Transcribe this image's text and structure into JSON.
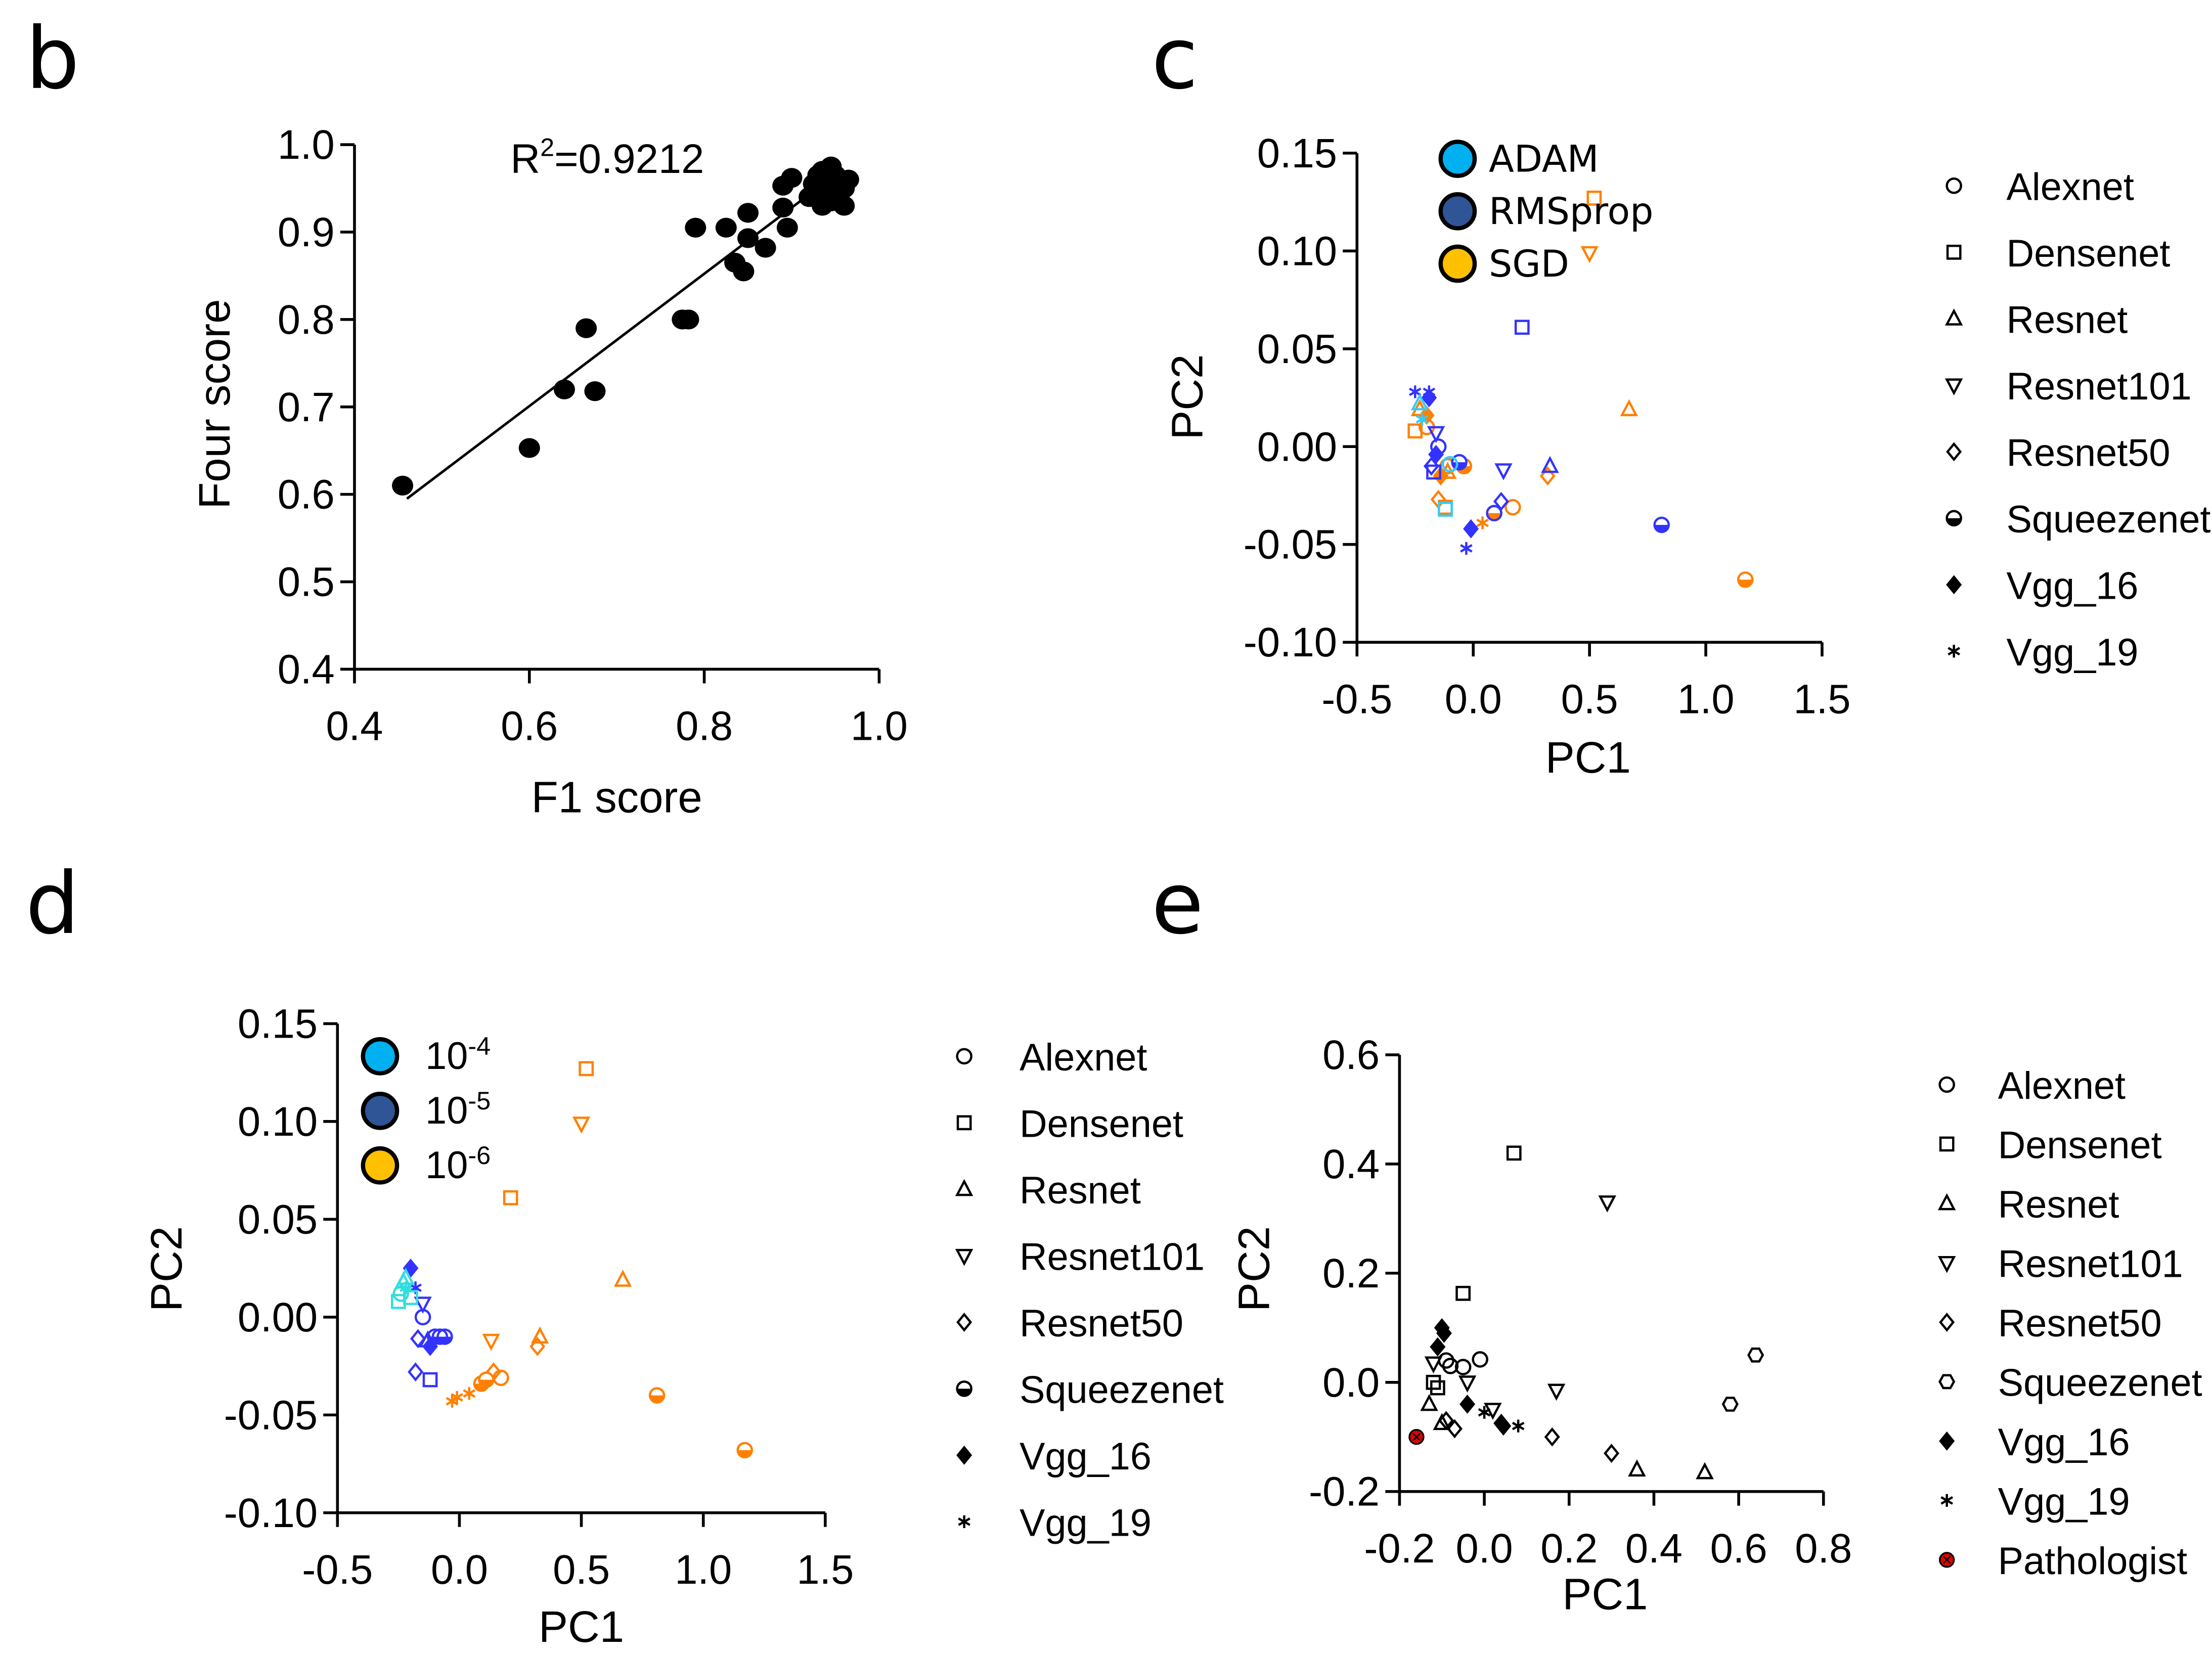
{
  "chart_data": [
    {
      "panel": "b",
      "type": "scatter",
      "xlabel": "F1 score",
      "ylabel": "Four score",
      "xlim": [
        0.4,
        1.0
      ],
      "ylim": [
        0.4,
        1.0
      ],
      "xticks": [
        0.4,
        0.6,
        0.8,
        1.0
      ],
      "xtick_labels": [
        "0.4",
        "0.6",
        "0.8",
        "1.0"
      ],
      "yticks": [
        0.4,
        0.5,
        0.6,
        0.7,
        0.8,
        0.9,
        1.0
      ],
      "ytick_labels": [
        "0.4",
        "0.5",
        "0.6",
        "0.7",
        "0.8",
        "0.9",
        "1.0"
      ],
      "annotation": {
        "base": "R",
        "sup": "2",
        "rest": "=0.9212"
      },
      "regression_line": [
        [
          0.46,
          0.595
        ],
        [
          0.945,
          0.962
        ]
      ],
      "points": [
        [
          0.455,
          0.61
        ],
        [
          0.6,
          0.653
        ],
        [
          0.64,
          0.72
        ],
        [
          0.665,
          0.79
        ],
        [
          0.675,
          0.718
        ],
        [
          0.775,
          0.8
        ],
        [
          0.782,
          0.8
        ],
        [
          0.79,
          0.905
        ],
        [
          0.825,
          0.905
        ],
        [
          0.835,
          0.865
        ],
        [
          0.845,
          0.855
        ],
        [
          0.85,
          0.922
        ],
        [
          0.85,
          0.893
        ],
        [
          0.87,
          0.882
        ],
        [
          0.89,
          0.928
        ],
        [
          0.895,
          0.905
        ],
        [
          0.89,
          0.953
        ],
        [
          0.9,
          0.962
        ],
        [
          0.92,
          0.94
        ],
        [
          0.93,
          0.95
        ],
        [
          0.93,
          0.965
        ],
        [
          0.935,
          0.93
        ],
        [
          0.94,
          0.96
        ],
        [
          0.945,
          0.975
        ],
        [
          0.95,
          0.94
        ],
        [
          0.955,
          0.955
        ],
        [
          0.96,
          0.93
        ],
        [
          0.96,
          0.95
        ],
        [
          0.965,
          0.96
        ],
        [
          0.94,
          0.945
        ],
        [
          0.95,
          0.965
        ],
        [
          0.925,
          0.955
        ],
        [
          0.945,
          0.935
        ],
        [
          0.935,
          0.97
        ]
      ]
    },
    {
      "panel": "c",
      "type": "scatter",
      "xlabel": "PC1",
      "ylabel": "PC2",
      "xlim": [
        -0.5,
        1.5
      ],
      "ylim": [
        -0.1,
        0.15
      ],
      "xticks": [
        -0.5,
        0.0,
        0.5,
        1.0,
        1.5
      ],
      "xtick_labels": [
        "-0.5",
        "0.0",
        "0.5",
        "1.0",
        "1.5"
      ],
      "yticks": [
        -0.1,
        -0.05,
        0.0,
        0.05,
        0.1,
        0.15
      ],
      "ytick_labels": [
        "-0.10",
        "-0.05",
        "0.00",
        "0.05",
        "0.10",
        "0.15"
      ],
      "color_legend": [
        {
          "label": "ADAM",
          "color": "#00b0f0"
        },
        {
          "label": "RMSprop",
          "color": "#2f5597"
        },
        {
          "label": "SGD",
          "color": "#ffc000"
        }
      ],
      "marker_colors": {
        "ADAM": "#33ccff",
        "RMSprop": "#3333ff",
        "SGD": "#ff8000"
      },
      "shape_legend": [
        "Alexnet",
        "Densenet",
        "Resnet",
        "Resnet101",
        "Resnet50",
        "Squeezenet",
        "Vgg_16",
        "Vgg_19"
      ],
      "points": [
        [
          0.52,
          0.127,
          "Densenet",
          "SGD"
        ],
        [
          0.5,
          0.099,
          "Resnet101",
          "SGD"
        ],
        [
          0.67,
          0.019,
          "Resnet",
          "SGD"
        ],
        [
          1.17,
          -0.068,
          "Squeezenet",
          "SGD"
        ],
        [
          0.32,
          -0.015,
          "Resnet50",
          "SGD"
        ],
        [
          0.17,
          -0.031,
          "Alexnet",
          "SGD"
        ],
        [
          0.09,
          -0.034,
          "Squeezenet",
          "SGD"
        ],
        [
          0.04,
          -0.039,
          "Vgg_19",
          "SGD"
        ],
        [
          -0.15,
          -0.027,
          "Resnet50",
          "SGD"
        ],
        [
          -0.12,
          -0.031,
          "Densenet",
          "SGD"
        ],
        [
          -0.04,
          -0.01,
          "Squeezenet",
          "SGD"
        ],
        [
          -0.11,
          -0.01,
          "Alexnet",
          "SGD"
        ],
        [
          -0.11,
          -0.013,
          "Resnet",
          "SGD"
        ],
        [
          -0.14,
          -0.015,
          "Vgg_16",
          "SGD"
        ],
        [
          -0.2,
          0.016,
          "Vgg_16",
          "SGD"
        ],
        [
          -0.23,
          0.019,
          "Resnet",
          "SGD"
        ],
        [
          -0.25,
          0.008,
          "Densenet",
          "SGD"
        ],
        [
          -0.2,
          0.01,
          "Alexnet",
          "SGD"
        ],
        [
          0.21,
          0.061,
          "Densenet",
          "RMSprop"
        ],
        [
          0.33,
          -0.01,
          "Resnet",
          "RMSprop"
        ],
        [
          0.13,
          -0.012,
          "Resnet101",
          "RMSprop"
        ],
        [
          0.81,
          -0.04,
          "Squeezenet",
          "RMSprop"
        ],
        [
          0.12,
          -0.028,
          "Resnet50",
          "RMSprop"
        ],
        [
          0.09,
          -0.034,
          "Alexnet",
          "RMSprop"
        ],
        [
          -0.01,
          -0.042,
          "Vgg_16",
          "RMSprop"
        ],
        [
          -0.03,
          -0.052,
          "Vgg_19",
          "RMSprop"
        ],
        [
          -0.25,
          0.028,
          "Vgg_19",
          "RMSprop"
        ],
        [
          -0.19,
          0.028,
          "Vgg_19",
          "RMSprop"
        ],
        [
          -0.19,
          0.025,
          "Vgg_16",
          "RMSprop"
        ],
        [
          -0.15,
          0.0,
          "Alexnet",
          "RMSprop"
        ],
        [
          -0.18,
          -0.01,
          "Resnet50",
          "RMSprop"
        ],
        [
          -0.17,
          -0.013,
          "Densenet",
          "RMSprop"
        ],
        [
          -0.16,
          0.007,
          "Resnet101",
          "RMSprop"
        ],
        [
          -0.06,
          -0.008,
          "Squeezenet",
          "RMSprop"
        ],
        [
          -0.16,
          -0.004,
          "Vgg_16",
          "RMSprop"
        ],
        [
          -0.23,
          0.022,
          "Resnet",
          "ADAM"
        ],
        [
          -0.1,
          -0.009,
          "Alexnet",
          "ADAM"
        ],
        [
          -0.12,
          -0.032,
          "Densenet",
          "ADAM"
        ],
        [
          -0.22,
          0.014,
          "Vgg_19",
          "ADAM"
        ]
      ]
    },
    {
      "panel": "d",
      "type": "scatter",
      "xlabel": "PC1",
      "ylabel": "PC2",
      "xlim": [
        -0.5,
        1.5
      ],
      "ylim": [
        -0.1,
        0.15
      ],
      "xticks": [
        -0.5,
        0.0,
        0.5,
        1.0,
        1.5
      ],
      "xtick_labels": [
        "-0.5",
        "0.0",
        "0.5",
        "1.0",
        "1.5"
      ],
      "yticks": [
        -0.1,
        -0.05,
        0.0,
        0.05,
        0.1,
        0.15
      ],
      "ytick_labels": [
        "-0.10",
        "-0.05",
        "0.00",
        "0.05",
        "0.10",
        "0.15"
      ],
      "color_legend": [
        {
          "base": "10",
          "exp": "-4",
          "color": "#00b0f0"
        },
        {
          "base": "10",
          "exp": "-5",
          "color": "#2f5597"
        },
        {
          "base": "10",
          "exp": "-6",
          "color": "#ffc000"
        }
      ],
      "marker_colors": {
        "1e-4": "#33dddd",
        "1e-5": "#3333ff",
        "1e-6": "#ff8000"
      },
      "shape_legend": [
        "Alexnet",
        "Densenet",
        "Resnet",
        "Resnet101",
        "Resnet50",
        "Squeezenet",
        "Vgg_16",
        "Vgg_19"
      ],
      "points": [
        [
          0.52,
          0.127,
          "Densenet",
          "1e-6"
        ],
        [
          0.5,
          0.099,
          "Resnet101",
          "1e-6"
        ],
        [
          0.21,
          0.061,
          "Densenet",
          "1e-6"
        ],
        [
          0.67,
          0.019,
          "Resnet",
          "1e-6"
        ],
        [
          0.81,
          -0.04,
          "Squeezenet",
          "1e-6"
        ],
        [
          1.17,
          -0.068,
          "Squeezenet",
          "1e-6"
        ],
        [
          0.13,
          -0.012,
          "Resnet101",
          "1e-6"
        ],
        [
          0.33,
          -0.01,
          "Resnet",
          "1e-6"
        ],
        [
          0.32,
          -0.015,
          "Resnet50",
          "1e-6"
        ],
        [
          0.17,
          -0.031,
          "Alexnet",
          "1e-6"
        ],
        [
          0.14,
          -0.028,
          "Resnet50",
          "1e-6"
        ],
        [
          0.09,
          -0.034,
          "Squeezenet",
          "1e-6"
        ],
        [
          0.11,
          -0.032,
          "Squeezenet",
          "1e-6"
        ],
        [
          0.04,
          -0.039,
          "Vgg_19",
          "1e-6"
        ],
        [
          -0.03,
          -0.043,
          "Vgg_19",
          "1e-6"
        ],
        [
          -0.01,
          -0.041,
          "Vgg_19",
          "1e-6"
        ],
        [
          -0.2,
          0.025,
          "Vgg_16",
          "1e-5"
        ],
        [
          -0.15,
          0.0,
          "Alexnet",
          "1e-5"
        ],
        [
          -0.15,
          0.007,
          "Resnet101",
          "1e-5"
        ],
        [
          -0.18,
          -0.028,
          "Resnet50",
          "1e-5"
        ],
        [
          -0.12,
          -0.032,
          "Densenet",
          "1e-5"
        ],
        [
          -0.17,
          -0.011,
          "Resnet50",
          "1e-5"
        ],
        [
          -0.1,
          -0.01,
          "Squeezenet",
          "1e-5"
        ],
        [
          -0.06,
          -0.01,
          "Squeezenet",
          "1e-5"
        ],
        [
          -0.08,
          -0.01,
          "Alexnet",
          "1e-5"
        ],
        [
          -0.12,
          -0.015,
          "Vgg_16",
          "1e-5"
        ],
        [
          -0.18,
          0.015,
          "Vgg_19",
          "1e-5"
        ],
        [
          -0.13,
          -0.012,
          "Resnet",
          "1e-5"
        ],
        [
          -0.25,
          0.008,
          "Densenet",
          "1e-4"
        ],
        [
          -0.23,
          0.018,
          "Resnet",
          "1e-4"
        ],
        [
          -0.22,
          0.02,
          "Resnet",
          "1e-4"
        ],
        [
          -0.24,
          0.012,
          "Alexnet",
          "1e-4"
        ],
        [
          -0.22,
          0.015,
          "Vgg_19",
          "1e-4"
        ],
        [
          -0.2,
          0.01,
          "Densenet",
          "1e-4"
        ]
      ]
    },
    {
      "panel": "e",
      "type": "scatter",
      "xlabel": "PC1",
      "ylabel": "PC2",
      "xlim": [
        -0.2,
        0.8
      ],
      "ylim": [
        -0.2,
        0.6
      ],
      "xticks": [
        -0.2,
        0.0,
        0.2,
        0.4,
        0.6,
        0.8
      ],
      "xtick_labels": [
        "-0.2",
        "0.0",
        "0.2",
        "0.4",
        "0.6",
        "0.8"
      ],
      "yticks": [
        -0.2,
        0.0,
        0.2,
        0.4,
        0.6
      ],
      "ytick_labels": [
        "-0.2",
        "0.0",
        "0.2",
        "0.4",
        "0.6"
      ],
      "marker_colors": {
        "model": "#000000",
        "Pathologist": "#e00000"
      },
      "shape_legend": [
        "Alexnet",
        "Densenet",
        "Resnet",
        "Resnet101",
        "Resnet50",
        "Squeezenet",
        "Vgg_16",
        "Vgg_19",
        "Pathologist"
      ],
      "points": [
        [
          0.07,
          0.42,
          "Densenet",
          "model"
        ],
        [
          -0.05,
          0.163,
          "Densenet",
          "model"
        ],
        [
          0.29,
          0.33,
          "Resnet101",
          "model"
        ],
        [
          0.17,
          -0.015,
          "Resnet101",
          "model"
        ],
        [
          -0.04,
          0.0,
          "Resnet101",
          "model"
        ],
        [
          0.02,
          -0.05,
          "Resnet101",
          "model"
        ],
        [
          -0.01,
          0.042,
          "Alexnet",
          "model"
        ],
        [
          -0.05,
          0.028,
          "Alexnet",
          "model"
        ],
        [
          -0.09,
          0.04,
          "Alexnet",
          "model"
        ],
        [
          -0.08,
          0.03,
          "Alexnet",
          "model"
        ],
        [
          0.64,
          0.05,
          "Squeezenet",
          "model"
        ],
        [
          0.58,
          -0.04,
          "Squeezenet",
          "model"
        ],
        [
          0.16,
          -0.1,
          "Resnet50",
          "model"
        ],
        [
          0.3,
          -0.13,
          "Resnet50",
          "model"
        ],
        [
          -0.07,
          -0.085,
          "Resnet50",
          "model"
        ],
        [
          -0.09,
          -0.07,
          "Resnet50",
          "model"
        ],
        [
          0.36,
          -0.16,
          "Resnet",
          "model"
        ],
        [
          0.52,
          -0.165,
          "Resnet",
          "model"
        ],
        [
          -0.13,
          -0.04,
          "Resnet",
          "model"
        ],
        [
          -0.1,
          -0.075,
          "Resnet",
          "model"
        ],
        [
          -0.1,
          0.1,
          "Vgg_16",
          "model"
        ],
        [
          -0.095,
          0.09,
          "Vgg_16",
          "model"
        ],
        [
          -0.11,
          0.065,
          "Vgg_16",
          "model"
        ],
        [
          -0.04,
          -0.04,
          "Vgg_16",
          "model"
        ],
        [
          0.04,
          -0.075,
          "Vgg_16",
          "model"
        ],
        [
          0.045,
          -0.08,
          "Vgg_16",
          "model"
        ],
        [
          0.0,
          -0.055,
          "Vgg_19",
          "model"
        ],
        [
          0.08,
          -0.08,
          "Vgg_19",
          "model"
        ],
        [
          -0.12,
          0.0,
          "Densenet",
          "model"
        ],
        [
          -0.11,
          -0.01,
          "Densenet",
          "model"
        ],
        [
          -0.12,
          0.035,
          "Resnet101",
          "model"
        ],
        [
          -0.16,
          -0.1,
          "Pathologist",
          "Pathologist"
        ]
      ]
    }
  ]
}
